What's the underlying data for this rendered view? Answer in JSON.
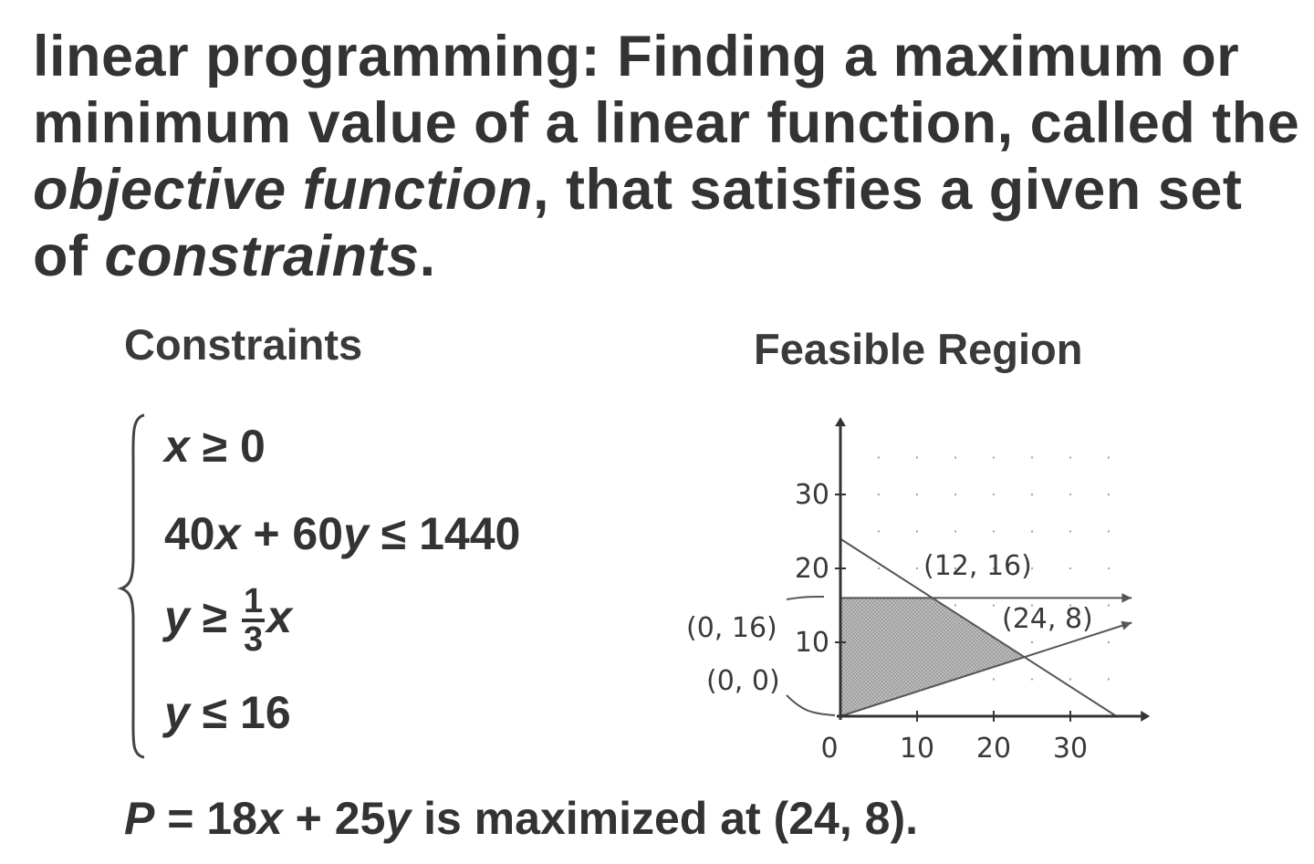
{
  "definition": {
    "term": "linear programming:",
    "part1": "Finding a maximum or minimum value of a linear function, called the",
    "objective": "objective function",
    "part2": ", that satisfies a given set of",
    "constraints_word": "constraints",
    "end": "."
  },
  "constraints_heading": "Constraints",
  "region_heading": "Feasible Region",
  "constraints": {
    "c1": {
      "var": "x",
      "rel": " ≥ 0"
    },
    "c2": {
      "a": "40",
      "x": "x",
      "plus": " + 60",
      "y": "y",
      "rel": " ≤ 1440"
    },
    "c3": {
      "y": "y",
      "rel": " ≥ ",
      "num": "1",
      "den": "3",
      "x": "x"
    },
    "c4": {
      "y": "y",
      "rel": " ≤ 16"
    }
  },
  "conclusion": {
    "p": "P",
    "eq": " = 18",
    "x": "x",
    "plus": " + 25",
    "y": "y",
    "rest": " is maximized at (24, 8)."
  },
  "chart_data": {
    "type": "area",
    "title": "Feasible Region",
    "xlim": [
      0,
      38
    ],
    "ylim": [
      0,
      38
    ],
    "x_ticks": [
      "0",
      "10",
      "20",
      "30"
    ],
    "y_ticks": [
      "10",
      "20",
      "30"
    ],
    "lines": [
      {
        "equation": "40x + 60y = 1440",
        "points": [
          [
            0,
            24
          ],
          [
            36,
            0
          ]
        ]
      },
      {
        "equation": "y = 16",
        "points": [
          [
            0,
            16
          ],
          [
            38,
            16
          ]
        ]
      },
      {
        "equation": "y = (1/3)x",
        "points": [
          [
            0,
            0
          ],
          [
            38,
            12.67
          ]
        ]
      }
    ],
    "feasible_region": [
      [
        0,
        0
      ],
      [
        0,
        16
      ],
      [
        12,
        16
      ],
      [
        24,
        8
      ]
    ],
    "vertex_labels": [
      "(0, 0)",
      "(0, 16)",
      "(12, 16)",
      "(24, 8)"
    ],
    "grid": "dotted"
  }
}
